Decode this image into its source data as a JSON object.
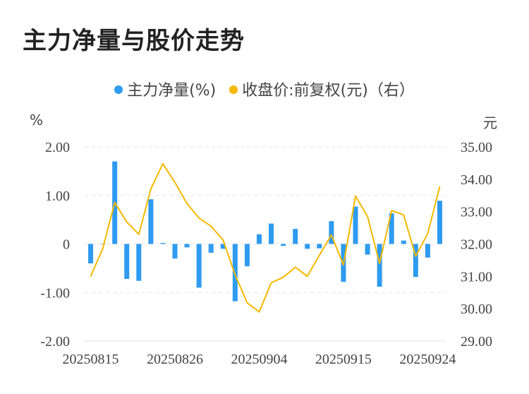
{
  "title": "主力净量与股价走势",
  "legend": {
    "series1": "主力净量(%)",
    "series2": "收盘价:前复权(元)（右）"
  },
  "left_unit": "%",
  "right_unit": "元",
  "colors": {
    "bar": "#2E9BF0",
    "line": "#F5B800"
  },
  "chart_data": {
    "type": "bar+line",
    "x_tick_labels": [
      "20250815",
      "20250826",
      "20250904",
      "20250915",
      "20250924"
    ],
    "x_tick_index": [
      0,
      7,
      14,
      21,
      28
    ],
    "left_axis": {
      "min": -2,
      "max": 2,
      "ticks": [
        "2.00",
        "1.00",
        "0",
        "-1.00",
        "-2.00"
      ],
      "tick_values": [
        2,
        1,
        0,
        -1,
        -2
      ]
    },
    "right_axis": {
      "min": 29,
      "max": 35,
      "ticks": [
        "35.00",
        "34.00",
        "33.00",
        "32.00",
        "31.00",
        "30.00",
        "29.00"
      ],
      "tick_values": [
        35,
        34,
        33,
        32,
        31,
        30,
        29
      ]
    },
    "series": [
      {
        "name": "主力净量(%)",
        "type": "bar",
        "axis": "left",
        "values": [
          -0.4,
          0.0,
          1.7,
          -0.72,
          -0.76,
          0.92,
          0.02,
          -0.3,
          -0.07,
          -0.9,
          -0.18,
          -0.1,
          -1.18,
          -0.46,
          0.2,
          0.42,
          -0.04,
          0.31,
          -0.1,
          -0.09,
          0.47,
          -0.78,
          0.77,
          -0.22,
          -0.88,
          0.63,
          0.07,
          -0.68,
          -0.28,
          0.89
        ]
      },
      {
        "name": "收盘价:前复权(元)（右）",
        "type": "line",
        "axis": "right",
        "values": [
          31.0,
          31.85,
          33.28,
          32.68,
          32.3,
          33.7,
          34.48,
          33.9,
          33.25,
          32.8,
          32.55,
          32.12,
          31.05,
          30.18,
          29.9,
          30.8,
          30.97,
          31.28,
          31.0,
          31.65,
          32.28,
          31.35,
          33.48,
          32.85,
          31.4,
          33.03,
          32.9,
          31.62,
          32.32,
          33.78
        ]
      }
    ]
  }
}
